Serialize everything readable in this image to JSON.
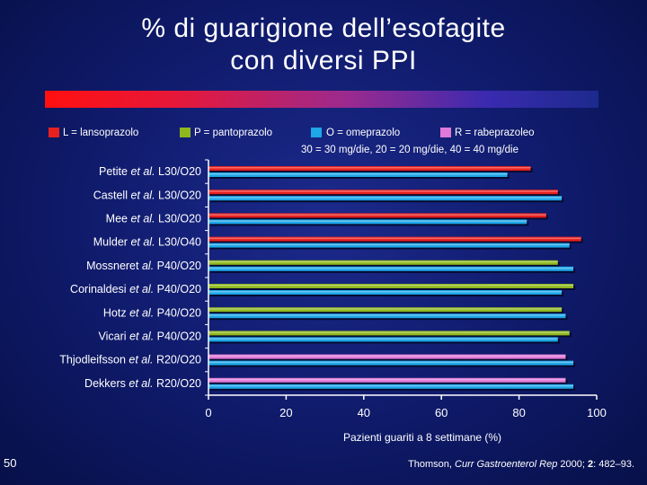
{
  "title": {
    "line1": "% di guarigione dell’esofagite",
    "line2": "con diversi PPI"
  },
  "legend": [
    {
      "label": "L = lansoprazolo",
      "color": "#e8201e"
    },
    {
      "label": "P = pantoprazolo",
      "color": "#8fb81e"
    },
    {
      "label": "O = omeprazolo",
      "color": "#1ea6e8"
    },
    {
      "label": "R = rabeprazoleo",
      "color": "#e07ad8"
    }
  ],
  "dose_note": "30 = 30 mg/die, 20 = 20 mg/die, 40 = 40 mg/die",
  "page_number": "50",
  "citation": {
    "author": "Thomson, ",
    "journal": "Curr Gastroenterol Rep",
    "year": " 2000; ",
    "volume": "2",
    "pages": ": 482–93."
  },
  "chart_data": {
    "type": "bar",
    "orientation": "horizontal",
    "xlabel": "Pazienti guariti a 8 settimane (%)",
    "xlim": [
      0,
      100
    ],
    "xticks": [
      "0",
      "20",
      "40",
      "60",
      "80",
      "100"
    ],
    "categories": [
      {
        "author": "Petite ",
        "etal": "et al.",
        "dose": " L30/O20"
      },
      {
        "author": "Castell ",
        "etal": "et al.",
        "dose": " L30/O20"
      },
      {
        "author": "Mee ",
        "etal": "et al.",
        "dose": " L30/O20"
      },
      {
        "author": "Mulder ",
        "etal": "et al.",
        "dose": " L30/O40"
      },
      {
        "author": "Mossneret ",
        "etal": "al.",
        "dose": " P40/O20"
      },
      {
        "author": "Corinaldesi ",
        "etal": "et al.",
        "dose": " P40/O20"
      },
      {
        "author": "Hotz ",
        "etal": "et al.",
        "dose": " P40/O20"
      },
      {
        "author": "Vicari ",
        "etal": "et al.",
        "dose": " P40/O20"
      },
      {
        "author": "Thjodleifsson ",
        "etal": "et al.",
        "dose": " R20/O20"
      },
      {
        "author": "Dekkers ",
        "etal": "et al.",
        "dose": " R20/O20"
      }
    ],
    "bars": [
      [
        {
          "drug": "L",
          "value": 83
        },
        {
          "drug": "O",
          "value": 77
        }
      ],
      [
        {
          "drug": "L",
          "value": 90
        },
        {
          "drug": "O",
          "value": 91
        }
      ],
      [
        {
          "drug": "L",
          "value": 87
        },
        {
          "drug": "O",
          "value": 82
        }
      ],
      [
        {
          "drug": "L",
          "value": 96
        },
        {
          "drug": "O",
          "value": 93
        }
      ],
      [
        {
          "drug": "P",
          "value": 90
        },
        {
          "drug": "O",
          "value": 94
        }
      ],
      [
        {
          "drug": "P",
          "value": 94
        },
        {
          "drug": "O",
          "value": 91
        }
      ],
      [
        {
          "drug": "P",
          "value": 91
        },
        {
          "drug": "O",
          "value": 92
        }
      ],
      [
        {
          "drug": "P",
          "value": 93
        },
        {
          "drug": "O",
          "value": 90
        }
      ],
      [
        {
          "drug": "R",
          "value": 92
        },
        {
          "drug": "O",
          "value": 94
        }
      ],
      [
        {
          "drug": "R",
          "value": 92
        },
        {
          "drug": "O",
          "value": 94
        }
      ]
    ],
    "colors": {
      "L": "#e8201e",
      "P": "#8fb81e",
      "O": "#1ea6e8",
      "R": "#e07ad8"
    },
    "grid": false,
    "legend_position": "top"
  }
}
